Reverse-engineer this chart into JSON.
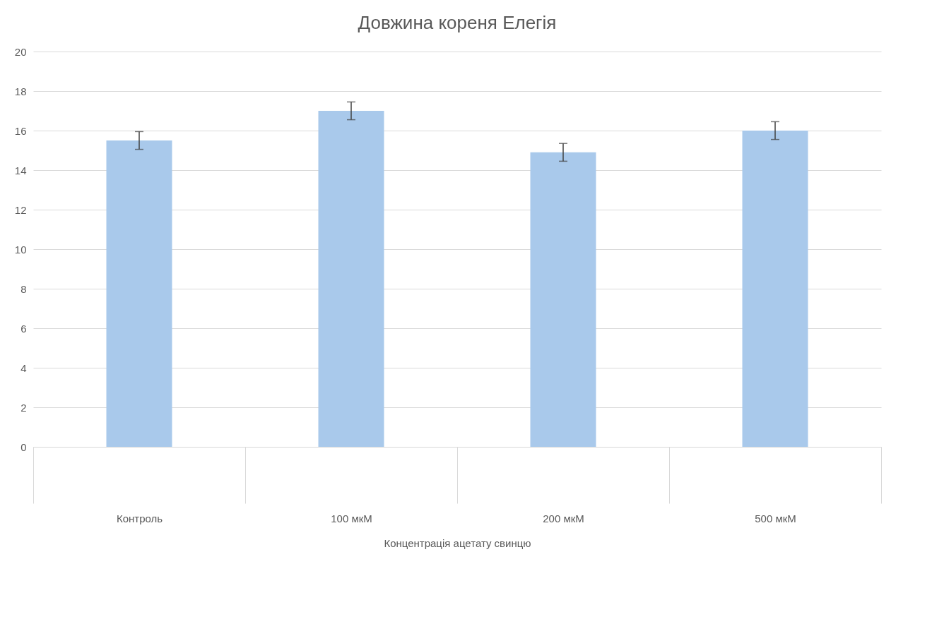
{
  "chart_data": {
    "type": "bar",
    "title": "Довжина кореня Елегія",
    "xlabel": "Концентрація ацетату свинцю",
    "categories": [
      "Контроль",
      "100 мкМ",
      "200 мкМ",
      "500 мкМ"
    ],
    "series": [
      {
        "color": "#a9c9eb",
        "values": [
          15.5,
          17.0,
          14.9,
          16.0
        ],
        "errors": [
          0.45,
          0.45,
          0.45,
          0.45
        ]
      }
    ],
    "ylim": [
      0,
      20
    ],
    "yticks": [
      0,
      2,
      4,
      6,
      8,
      10,
      12,
      14,
      16,
      18,
      20
    ],
    "grid": "y"
  }
}
